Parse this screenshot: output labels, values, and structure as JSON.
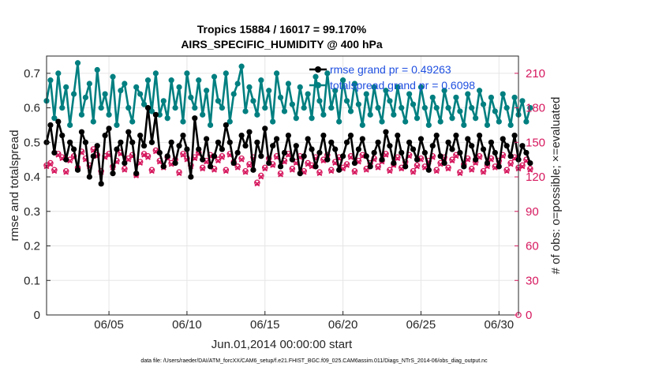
{
  "chart_data": {
    "type": "line",
    "title_line1": "Tropics 15884 / 16017 = 99.170%",
    "title_line2": "AIRS_SPECIFIC_HUMIDITY @ 400 hPa",
    "xlabel": "Jun.01,2014 00:00:00 start",
    "ylabel": "rmse and totalspread",
    "ylabel_right": "# of obs: o=possible; ×=evaluated",
    "footnote": "data file: /Users/raeder/DAI/ATM_forcXX/CAM6_setup/f.e21.FHIST_BGC.f09_025.CAM6assim.011/Diags_NTrS_2014-06/obs_diag_output.nc",
    "xlim": [
      1,
      31.25
    ],
    "ylim": [
      0,
      0.75
    ],
    "ylim_right": [
      0,
      225
    ],
    "xticks": [
      5,
      10,
      15,
      20,
      25,
      30
    ],
    "xtick_labels": [
      "06/05",
      "06/10",
      "06/15",
      "06/20",
      "06/25",
      "06/30"
    ],
    "yticks": [
      0,
      0.1,
      0.2,
      0.3,
      0.4,
      0.5,
      0.6,
      0.7
    ],
    "ytick_labels": [
      "0",
      "0.1",
      "0.2",
      "0.3",
      "0.4",
      "0.5",
      "0.6",
      "0.7"
    ],
    "yticks_right": [
      0,
      30,
      60,
      90,
      120,
      150,
      180,
      210
    ],
    "ytick_labels_right": [
      "0",
      "30",
      "60",
      "90",
      "120",
      "150",
      "180",
      "210"
    ],
    "grid": true,
    "legend": [
      "rmse grand pr = 0.49263",
      "totalspread grand pr = 0.6098"
    ],
    "colors": {
      "rmse": "#000000",
      "spread": "#007f80",
      "obs": "#d6185e",
      "legend_text": "#1f4fe0",
      "grid": "#e6e6e6"
    },
    "dt": 0.25,
    "series": [
      {
        "name": "rmse",
        "values": [
          0.5,
          0.55,
          0.47,
          0.56,
          0.52,
          0.45,
          0.5,
          0.48,
          0.42,
          0.53,
          0.5,
          0.4,
          0.46,
          0.49,
          0.38,
          0.52,
          0.54,
          0.41,
          0.48,
          0.5,
          0.44,
          0.53,
          0.5,
          0.41,
          0.52,
          0.49,
          0.6,
          0.5,
          0.58,
          0.47,
          0.43,
          0.46,
          0.5,
          0.44,
          0.49,
          0.52,
          0.48,
          0.4,
          0.57,
          0.48,
          0.45,
          0.51,
          0.43,
          0.46,
          0.5,
          0.48,
          0.55,
          0.5,
          0.44,
          0.47,
          0.52,
          0.49,
          0.53,
          0.42,
          0.5,
          0.46,
          0.54,
          0.44,
          0.49,
          0.51,
          0.43,
          0.47,
          0.52,
          0.45,
          0.49,
          0.41,
          0.46,
          0.51,
          0.48,
          0.43,
          0.47,
          0.52,
          0.45,
          0.5,
          0.48,
          0.42,
          0.46,
          0.5,
          0.52,
          0.44,
          0.48,
          0.51,
          0.46,
          0.43,
          0.47,
          0.5,
          0.45,
          0.53,
          0.49,
          0.44,
          0.52,
          0.47,
          0.43,
          0.5,
          0.48,
          0.45,
          0.51,
          0.47,
          0.42,
          0.49,
          0.52,
          0.46,
          0.44,
          0.5,
          0.48,
          0.52,
          0.47,
          0.43,
          0.51,
          0.49,
          0.45,
          0.52,
          0.48,
          0.44,
          0.5,
          0.47,
          0.43,
          0.51,
          0.49,
          0.46,
          0.52,
          0.45,
          0.49,
          0.47,
          0.44
        ]
      },
      {
        "name": "totalspread",
        "values": [
          0.62,
          0.68,
          0.57,
          0.7,
          0.6,
          0.66,
          0.55,
          0.64,
          0.73,
          0.58,
          0.63,
          0.67,
          0.56,
          0.71,
          0.6,
          0.64,
          0.58,
          0.69,
          0.55,
          0.65,
          0.67,
          0.6,
          0.56,
          0.66,
          0.64,
          0.61,
          0.68,
          0.59,
          0.7,
          0.58,
          0.62,
          0.57,
          0.68,
          0.6,
          0.66,
          0.56,
          0.7,
          0.63,
          0.6,
          0.68,
          0.58,
          0.65,
          0.55,
          0.69,
          0.62,
          0.6,
          0.7,
          0.56,
          0.64,
          0.67,
          0.72,
          0.59,
          0.66,
          0.62,
          0.58,
          0.68,
          0.6,
          0.65,
          0.56,
          0.7,
          0.63,
          0.59,
          0.67,
          0.61,
          0.57,
          0.66,
          0.6,
          0.64,
          0.57,
          0.69,
          0.62,
          0.58,
          0.7,
          0.6,
          0.65,
          0.56,
          0.68,
          0.62,
          0.59,
          0.67,
          0.61,
          0.55,
          0.64,
          0.58,
          0.66,
          0.6,
          0.56,
          0.65,
          0.62,
          0.58,
          0.66,
          0.6,
          0.56,
          0.64,
          0.61,
          0.57,
          0.66,
          0.6,
          0.55,
          0.63,
          0.6,
          0.56,
          0.65,
          0.6,
          0.57,
          0.63,
          0.59,
          0.55,
          0.64,
          0.6,
          0.57,
          0.65,
          0.61,
          0.55,
          0.63,
          0.59,
          0.56,
          0.64,
          0.6,
          0.55,
          0.63,
          0.58,
          0.62,
          0.56,
          0.6
        ]
      },
      {
        "name": "obs_possible",
        "values": [
          130,
          132,
          126,
          140,
          137,
          125,
          135,
          138,
          128,
          142,
          136,
          130,
          144,
          139,
          125,
          138,
          140,
          129,
          134,
          141,
          127,
          136,
          139,
          122,
          133,
          140,
          138,
          126,
          143,
          134,
          129,
          137,
          132,
          135,
          124,
          140,
          136,
          130,
          137,
          141,
          128,
          134,
          139,
          127,
          135,
          138,
          126,
          140,
          133,
          129,
          136,
          125,
          131,
          137,
          115,
          121,
          128,
          136,
          131,
          138,
          123,
          134,
          140,
          127,
          133,
          138,
          125,
          132,
          130,
          137,
          124,
          135,
          139,
          126,
          133,
          137,
          128,
          131,
          138,
          125,
          134,
          139,
          127,
          132,
          136,
          129,
          134,
          140,
          126,
          131,
          137,
          128,
          133,
          139,
          125,
          130,
          136,
          129,
          134,
          138,
          126,
          132,
          137,
          128,
          135,
          139,
          124,
          131,
          136,
          127,
          133,
          138,
          125,
          130,
          136,
          129,
          134,
          139,
          126,
          132,
          137,
          128,
          130,
          135,
          127
        ]
      },
      {
        "name": "obs_evaluated",
        "values": [
          129,
          131,
          125,
          139,
          136,
          124,
          134,
          137,
          127,
          141,
          135,
          129,
          143,
          138,
          124,
          137,
          139,
          128,
          133,
          140,
          126,
          135,
          138,
          121,
          132,
          139,
          137,
          125,
          142,
          133,
          128,
          136,
          131,
          134,
          123,
          139,
          135,
          129,
          136,
          140,
          127,
          133,
          138,
          126,
          134,
          137,
          125,
          139,
          132,
          128,
          135,
          124,
          130,
          136,
          114,
          120,
          127,
          135,
          130,
          137,
          122,
          133,
          139,
          126,
          132,
          137,
          124,
          131,
          129,
          136,
          123,
          134,
          138,
          125,
          132,
          136,
          127,
          130,
          137,
          124,
          133,
          138,
          126,
          131,
          135,
          128,
          133,
          139,
          125,
          130,
          136,
          127,
          132,
          138,
          124,
          129,
          135,
          128,
          133,
          137,
          125,
          131,
          136,
          127,
          134,
          138,
          123,
          130,
          135,
          126,
          132,
          137,
          124,
          129,
          135,
          128,
          133,
          138,
          125,
          131,
          136,
          127,
          129,
          134,
          126
        ]
      }
    ]
  }
}
